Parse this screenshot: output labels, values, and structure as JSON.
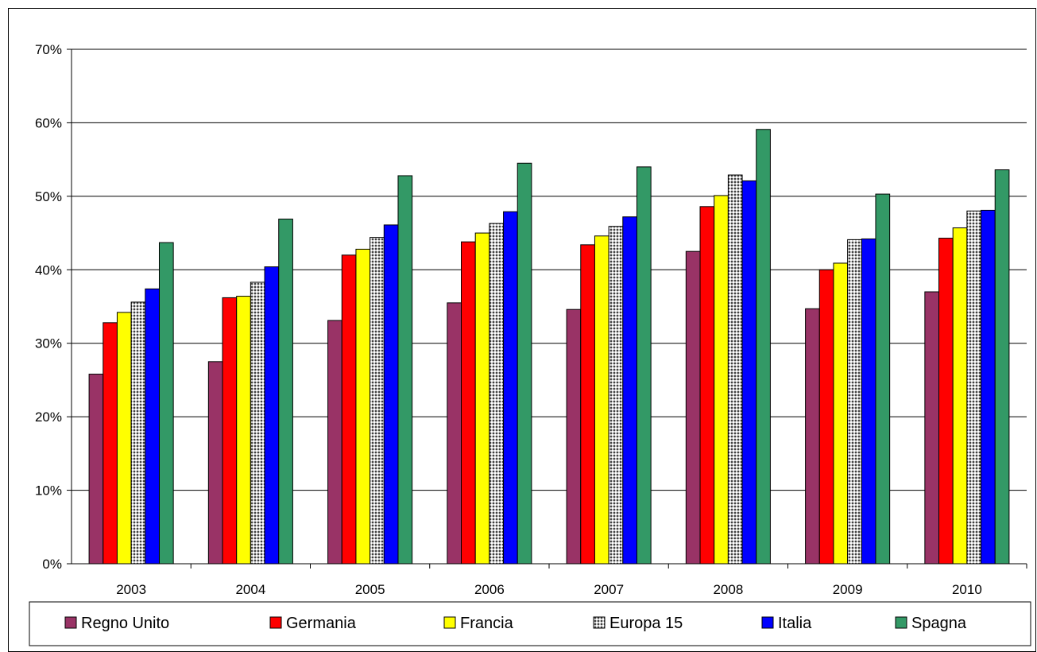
{
  "chart_data": {
    "type": "bar",
    "categories": [
      "2003",
      "2004",
      "2005",
      "2006",
      "2007",
      "2008",
      "2009",
      "2010"
    ],
    "series": [
      {
        "name": "Regno Unito",
        "color": "#993366",
        "pattern": "solid",
        "values": [
          25.8,
          27.5,
          33.1,
          35.5,
          34.6,
          42.5,
          34.7,
          37.0
        ]
      },
      {
        "name": "Germania",
        "color": "#ff0000",
        "pattern": "solid",
        "values": [
          32.8,
          36.2,
          42.0,
          43.8,
          43.4,
          48.6,
          40.0,
          44.3
        ]
      },
      {
        "name": "Francia",
        "color": "#ffff00",
        "pattern": "solid",
        "values": [
          34.2,
          36.4,
          42.8,
          45.0,
          44.6,
          50.1,
          40.9,
          45.7
        ]
      },
      {
        "name": "Europa 15",
        "color": "#808080",
        "pattern": "dots",
        "values": [
          35.6,
          38.3,
          44.4,
          46.3,
          45.9,
          52.9,
          44.1,
          48.0
        ]
      },
      {
        "name": "Italia",
        "color": "#0000ff",
        "pattern": "solid",
        "values": [
          37.4,
          40.4,
          46.1,
          47.9,
          47.2,
          52.1,
          44.2,
          48.1
        ]
      },
      {
        "name": "Spagna",
        "color": "#339966",
        "pattern": "solid",
        "values": [
          43.7,
          46.9,
          52.8,
          54.5,
          54.0,
          59.1,
          50.3,
          53.6
        ]
      }
    ],
    "ylim": [
      0,
      70
    ],
    "yticks": [
      "0%",
      "10%",
      "20%",
      "30%",
      "40%",
      "50%",
      "60%",
      "70%"
    ],
    "grid": true,
    "legend_position": "bottom",
    "title": "",
    "xlabel": "",
    "ylabel": ""
  }
}
